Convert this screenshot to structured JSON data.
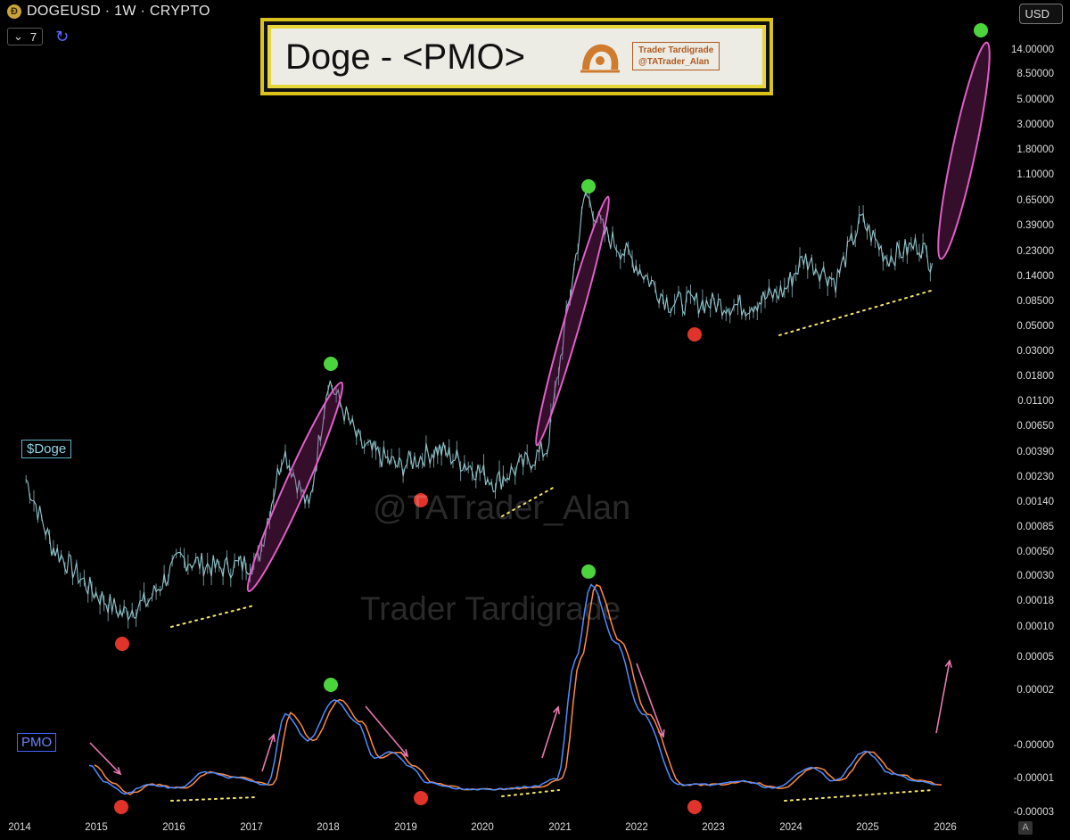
{
  "header": {
    "symbol_line": "DOGEUSD · 1W · CRYPTO",
    "interval_value": "7",
    "currency_button": "USD"
  },
  "banner": {
    "title": "Doge - <PMO>",
    "logo_line1": "Trader Tardigrade",
    "logo_line2": "@TATrader_Alan"
  },
  "labels": {
    "price_panel": "$Doge",
    "indicator_panel": "PMO"
  },
  "watermarks": {
    "handle": "@TATrader_Alan",
    "name": "Trader Tardigrade"
  },
  "price_axis_ticks": [
    "14.00000",
    "8.50000",
    "5.00000",
    "3.00000",
    "1.80000",
    "1.10000",
    "0.65000",
    "0.39000",
    "0.23000",
    "0.14000",
    "0.08500",
    "0.05000",
    "0.03000",
    "0.01800",
    "0.01100",
    "0.00650",
    "0.00390",
    "0.00230",
    "0.00140",
    "0.00085",
    "0.00050",
    "0.00030",
    "0.00018",
    "0.00010",
    "0.00005",
    "0.00002"
  ],
  "pmo_axis_ticks": [
    "-0.00000",
    "-0.00001",
    "-0.00003"
  ],
  "colors": {
    "price_line": "#8fc5cc",
    "pmo_line": "#4f8cff",
    "signal_line": "#ff8a3d",
    "top_marker": "#4cd43c",
    "bottom_marker": "#e0342a",
    "ellipse": "#e060c8",
    "trend_dots": "#f3e36a",
    "arrow": "#e879b0"
  },
  "chart_data": {
    "type": "line",
    "x_axis_years": [
      "2014",
      "2015",
      "2016",
      "2017",
      "2018",
      "2019",
      "2020",
      "2021",
      "2022",
      "2023",
      "2024",
      "2025",
      "2026"
    ],
    "y_scale": "log",
    "ylim": [
      2e-05,
      20
    ],
    "price_series": {
      "x": [
        "2014-02",
        "2014-06",
        "2014-12",
        "2015-05",
        "2015-09",
        "2016-02",
        "2016-08",
        "2017-02",
        "2017-06",
        "2017-10",
        "2018-01",
        "2018-06",
        "2018-12",
        "2019-06",
        "2019-12",
        "2020-03",
        "2020-11",
        "2021-02",
        "2021-05",
        "2021-08",
        "2021-12",
        "2022-06",
        "2022-11",
        "2023-06",
        "2023-12",
        "2024-03",
        "2024-08",
        "2024-12",
        "2025-04",
        "2025-09",
        "2025-11"
      ],
      "values": [
        0.0017,
        0.00042,
        0.00017,
        0.0001,
        0.00013,
        0.00032,
        0.00026,
        0.0003,
        0.0032,
        0.0009,
        0.014,
        0.0035,
        0.0022,
        0.0032,
        0.0021,
        0.0016,
        0.0032,
        0.05,
        0.7,
        0.3,
        0.18,
        0.07,
        0.07,
        0.065,
        0.09,
        0.18,
        0.11,
        0.4,
        0.18,
        0.24,
        0.16
      ]
    },
    "pmo_markers": {
      "tops": [
        "2018-01",
        "2021-05"
      ],
      "bottoms": [
        "2015-05",
        "2019-02",
        "2022-10"
      ]
    },
    "price_markers": {
      "tops": [
        "2018-01",
        "2021-05",
        "2026-04"
      ],
      "bottoms": [
        "2015-05",
        "2019-02",
        "2022-10"
      ]
    },
    "legend": "none",
    "grid": false
  }
}
